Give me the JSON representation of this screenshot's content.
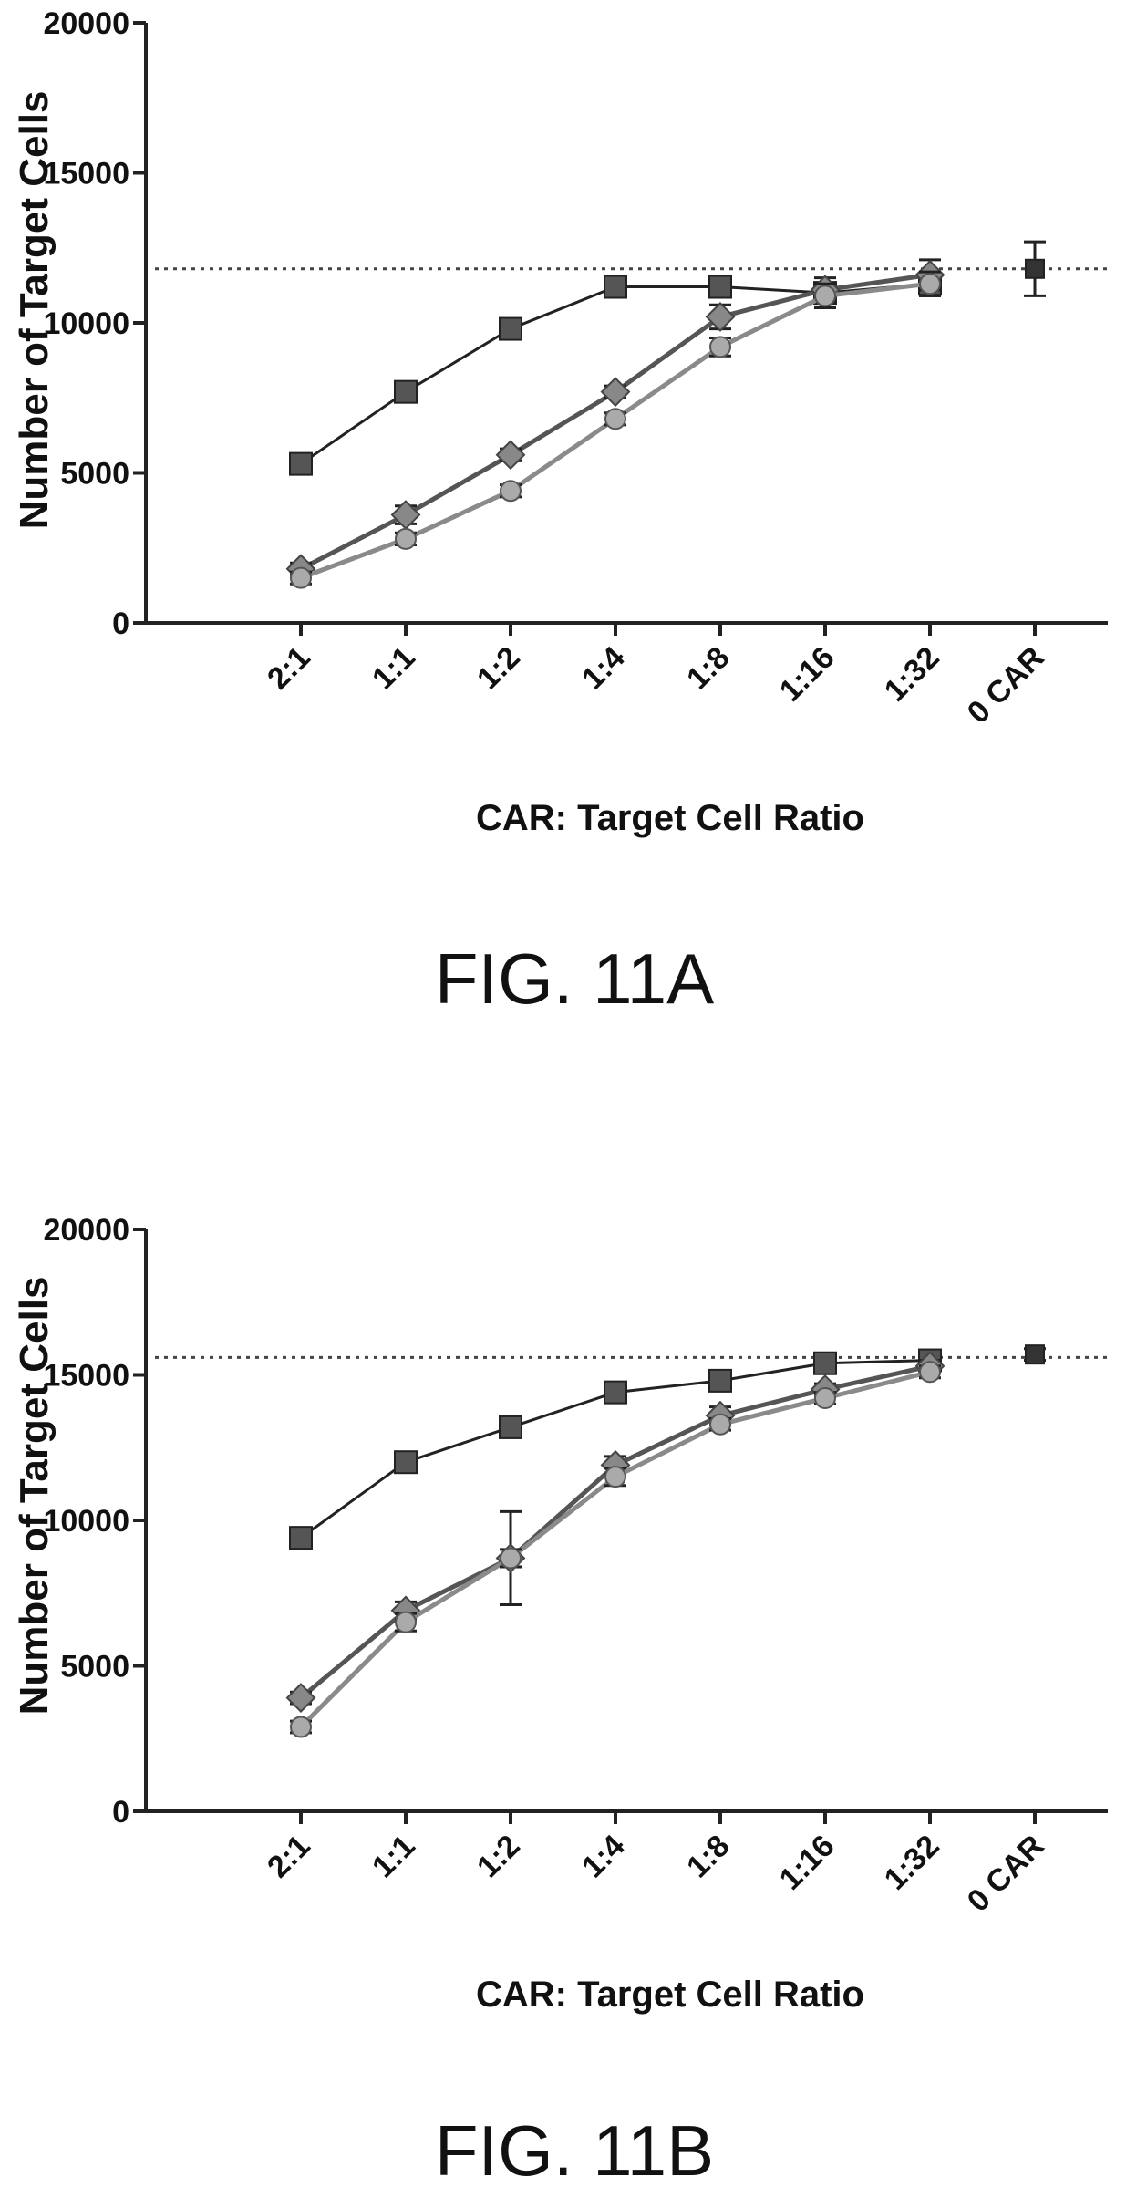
{
  "chart_data": [
    {
      "type": "line",
      "caption": "FIG. 11A",
      "xlabel": "CAR: Target Cell Ratio",
      "ylabel": "Number of Target Cells",
      "categories": [
        "2:1",
        "1:1",
        "1:2",
        "1:4",
        "1:8",
        "1:16",
        "1:32",
        "0 CAR"
      ],
      "yticks": [
        0,
        5000,
        10000,
        15000,
        20000
      ],
      "ylim": [
        0,
        20000
      ],
      "reference_line": 11800,
      "series": [
        {
          "values": [
            5300,
            7700,
            9800,
            11200,
            11200,
            11000,
            11300,
            null
          ],
          "err": [
            200,
            200,
            200,
            200,
            300,
            300,
            400,
            null
          ]
        },
        {
          "values": [
            1800,
            3600,
            5600,
            7700,
            10200,
            11100,
            11600,
            null
          ],
          "err": [
            200,
            300,
            200,
            200,
            400,
            400,
            500,
            null
          ]
        },
        {
          "values": [
            1500,
            2800,
            4400,
            6800,
            9200,
            10900,
            11300,
            null
          ],
          "err": [
            200,
            200,
            200,
            200,
            300,
            400,
            400,
            null
          ]
        },
        {
          "values": [
            null,
            null,
            null,
            null,
            null,
            null,
            null,
            11800
          ],
          "err": [
            null,
            null,
            null,
            null,
            null,
            null,
            null,
            900
          ]
        }
      ]
    },
    {
      "type": "line",
      "caption": "FIG. 11B",
      "xlabel": "CAR: Target Cell Ratio",
      "ylabel": "Number of Target Cells",
      "categories": [
        "2:1",
        "1:1",
        "1:2",
        "1:4",
        "1:8",
        "1:16",
        "1:32",
        "0 CAR"
      ],
      "yticks": [
        0,
        5000,
        10000,
        15000,
        20000
      ],
      "ylim": [
        0,
        20000
      ],
      "reference_line": 15600,
      "series": [
        {
          "values": [
            9400,
            12000,
            13200,
            14400,
            14800,
            15400,
            15500,
            null
          ],
          "err": [
            200,
            300,
            200,
            200,
            200,
            200,
            200,
            null
          ]
        },
        {
          "values": [
            3900,
            6900,
            8700,
            11900,
            13600,
            14500,
            15300,
            null
          ],
          "err": [
            200,
            300,
            1600,
            300,
            300,
            200,
            200,
            null
          ]
        },
        {
          "values": [
            2900,
            6500,
            8700,
            11500,
            13300,
            14200,
            15100,
            null
          ],
          "err": [
            200,
            300,
            300,
            300,
            200,
            200,
            200,
            null
          ]
        },
        {
          "values": [
            null,
            null,
            null,
            null,
            null,
            null,
            null,
            15700
          ],
          "err": [
            null,
            null,
            null,
            null,
            null,
            null,
            null,
            200
          ]
        }
      ]
    }
  ]
}
